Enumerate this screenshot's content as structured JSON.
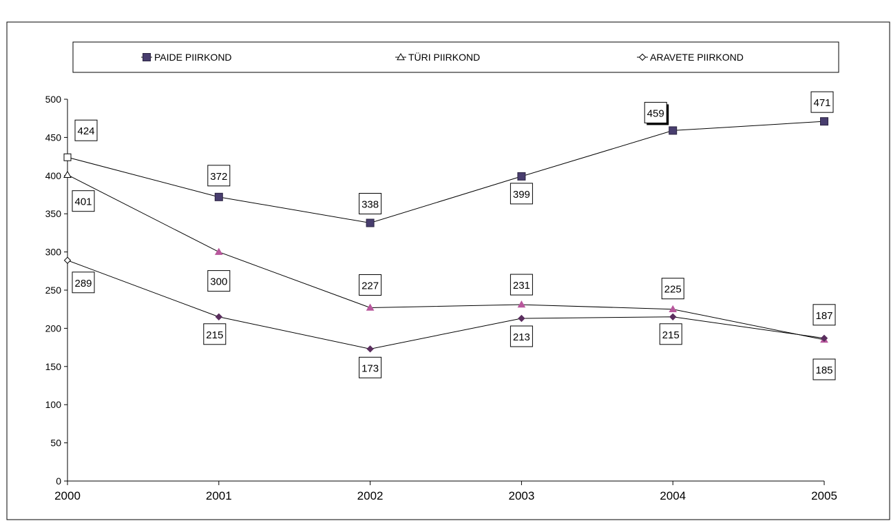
{
  "chart_data": {
    "type": "line",
    "categories": [
      "2000",
      "2001",
      "2002",
      "2003",
      "2004",
      "2005"
    ],
    "ylim": [
      0,
      500
    ],
    "yticks": [
      0,
      50,
      100,
      150,
      200,
      250,
      300,
      350,
      400,
      450,
      500
    ],
    "grid": false,
    "legend_position": "top",
    "series": [
      {
        "name": "PAIDE PIIRKOND",
        "values": [
          424,
          372,
          338,
          399,
          459,
          471
        ],
        "labels": [
          "424",
          "372",
          "338",
          "399",
          "459",
          "471"
        ],
        "marker": "square",
        "color": "#483d6e"
      },
      {
        "name": "TÜRI PIIRKOND",
        "values": [
          401,
          300,
          227,
          231,
          225,
          185
        ],
        "labels": [
          "401",
          "300",
          "227",
          "231",
          "225",
          "185"
        ],
        "marker": "triangle",
        "color": "#b8579c"
      },
      {
        "name": "ARAVETE PIIRKOND",
        "values": [
          289,
          215,
          173,
          213,
          215,
          187
        ],
        "labels": [
          "289",
          "215",
          "173",
          "213",
          "215",
          "187"
        ],
        "marker": "diamond",
        "color": "#5a2e5e"
      }
    ]
  }
}
